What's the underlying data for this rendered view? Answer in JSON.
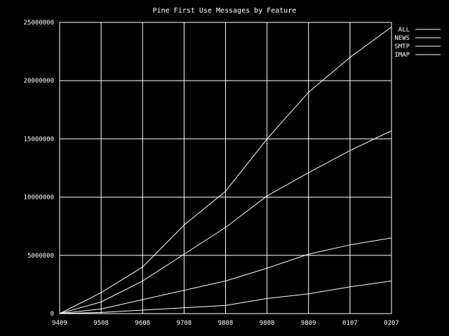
{
  "chart_data": {
    "type": "line",
    "title": "Pine First Use Messages by Feature",
    "xlabel": "",
    "ylabel": "",
    "categories": [
      "9409",
      "9508",
      "9608",
      "9708",
      "9808",
      "9808",
      "9809",
      "0107",
      "0207"
    ],
    "ylim": [
      0,
      25000000
    ],
    "y_ticks": [
      0,
      5000000,
      10000000,
      15000000,
      20000000,
      25000000
    ],
    "y_tick_labels": [
      "0",
      "5000000",
      "10000000",
      "15000000",
      "20000000",
      "25000000"
    ],
    "grid": true,
    "legend_position": "top-right",
    "series": [
      {
        "name": "ALL",
        "values": [
          0,
          1800000,
          4000000,
          7600000,
          10500000,
          15000000,
          19000000,
          22000000,
          24600000
        ]
      },
      {
        "name": "NEWS",
        "values": [
          0,
          1000000,
          2800000,
          5100000,
          7400000,
          10100000,
          12100000,
          14000000,
          15700000
        ]
      },
      {
        "name": "SMTP",
        "values": [
          0,
          400000,
          1200000,
          2000000,
          2800000,
          3900000,
          5100000,
          5900000,
          6500000
        ]
      },
      {
        "name": "IMAP",
        "values": [
          0,
          100000,
          300000,
          500000,
          700000,
          1300000,
          1700000,
          2300000,
          2800000
        ]
      }
    ]
  }
}
